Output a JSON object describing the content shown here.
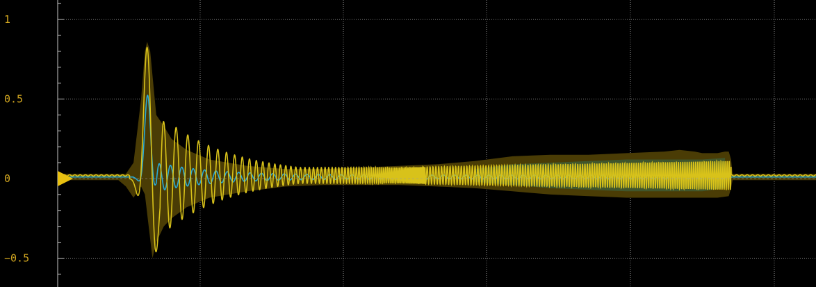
{
  "chart_data": {
    "type": "line",
    "grid": true,
    "ylim": [
      -0.67,
      1.1
    ],
    "yticks": [
      {
        "value": 1,
        "label": "1"
      },
      {
        "value": 0.5,
        "label": "0.5"
      },
      {
        "value": 0,
        "label": "0"
      },
      {
        "value": -0.5,
        "label": "−0.5"
      }
    ],
    "y_minor_step": 0.1,
    "trigger_level": 0,
    "colors": {
      "background": "#000000",
      "grid": "#8a8a8a",
      "axis": "#c8c8c8",
      "tick_label": "#d4a820",
      "envelope": "#4a3c05",
      "envelope_mid": "#3e5a34",
      "ch1_trace": "#d8c21a",
      "ch2_trace": "#2aaad6",
      "trigger_marker": "#e8c010"
    },
    "ch1_envelope": {
      "upper": [
        [
          0,
          0.03
        ],
        [
          0.05,
          0.03
        ],
        [
          0.09,
          0.03
        ],
        [
          0.1,
          0.1
        ],
        [
          0.11,
          0.5
        ],
        [
          0.115,
          0.8
        ],
        [
          0.118,
          0.86
        ],
        [
          0.122,
          0.8
        ],
        [
          0.13,
          0.4
        ],
        [
          0.14,
          0.33
        ],
        [
          0.15,
          0.25
        ],
        [
          0.17,
          0.18
        ],
        [
          0.2,
          0.12
        ],
        [
          0.25,
          0.08
        ],
        [
          0.3,
          0.06
        ],
        [
          0.35,
          0.06
        ],
        [
          0.4,
          0.07
        ],
        [
          0.45,
          0.08
        ],
        [
          0.5,
          0.09
        ],
        [
          0.55,
          0.11
        ],
        [
          0.6,
          0.14
        ],
        [
          0.65,
          0.15
        ],
        [
          0.7,
          0.15
        ],
        [
          0.75,
          0.16
        ],
        [
          0.8,
          0.17
        ],
        [
          0.82,
          0.18
        ],
        [
          0.84,
          0.17
        ],
        [
          0.85,
          0.16
        ],
        [
          0.87,
          0.16
        ],
        [
          0.88,
          0.17
        ],
        [
          0.885,
          0.17
        ],
        [
          0.888,
          0.12
        ],
        [
          0.89,
          0.03
        ],
        [
          1.0,
          0.03
        ]
      ],
      "lower": [
        [
          0,
          -0.01
        ],
        [
          0.05,
          -0.01
        ],
        [
          0.08,
          -0.01
        ],
        [
          0.09,
          -0.05
        ],
        [
          0.1,
          -0.12
        ],
        [
          0.11,
          -0.05
        ],
        [
          0.115,
          -0.1
        ],
        [
          0.12,
          -0.3
        ],
        [
          0.125,
          -0.5
        ],
        [
          0.13,
          -0.4
        ],
        [
          0.14,
          -0.3
        ],
        [
          0.15,
          -0.25
        ],
        [
          0.17,
          -0.18
        ],
        [
          0.2,
          -0.12
        ],
        [
          0.25,
          -0.08
        ],
        [
          0.3,
          -0.05
        ],
        [
          0.35,
          -0.04
        ],
        [
          0.4,
          -0.04
        ],
        [
          0.45,
          -0.04
        ],
        [
          0.5,
          -0.05
        ],
        [
          0.55,
          -0.06
        ],
        [
          0.6,
          -0.08
        ],
        [
          0.65,
          -0.1
        ],
        [
          0.7,
          -0.11
        ],
        [
          0.75,
          -0.12
        ],
        [
          0.8,
          -0.12
        ],
        [
          0.85,
          -0.12
        ],
        [
          0.87,
          -0.12
        ],
        [
          0.885,
          -0.11
        ],
        [
          0.888,
          -0.06
        ],
        [
          0.89,
          -0.01
        ],
        [
          1.0,
          -0.01
        ]
      ]
    },
    "ch1_trace": {
      "baseline": 0.02,
      "burst_start": 0.095,
      "burst_peak": 0.118,
      "burst_peak_value": 0.85,
      "burst_trough_value": -0.5,
      "ringdown_decay": 11.0,
      "ringdown_period_start": 0.018,
      "ringdown_period_end": 0.006,
      "sustain_amplitude": 0.05,
      "sustain_growth_to": 0.09,
      "end": 0.888
    },
    "ch2_trace": {
      "baseline": 0.01,
      "peak_value": 0.52,
      "trough_value": -0.08,
      "sustain_amplitude": 0.012,
      "end": 0.888
    }
  }
}
